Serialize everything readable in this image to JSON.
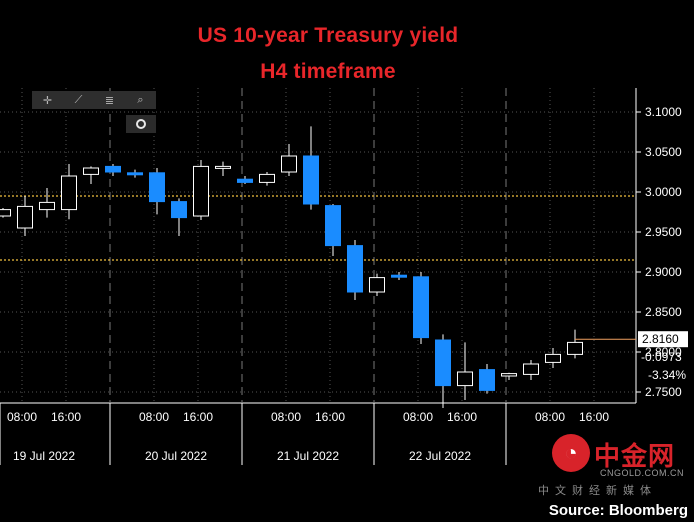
{
  "title": "US 10-year Treasury yield",
  "subtitle": "H4 timeframe",
  "source": "Source: Bloomberg",
  "watermark": {
    "name": "中金网",
    "url": "CNGOLD.COM.CN",
    "sub": "中文财经新媒体",
    "icon": "gold-logo-icon"
  },
  "toolbar": {
    "icons": [
      "crosshair-icon",
      "draw-line-icon",
      "indicator-icon",
      "zoom-icon"
    ],
    "glyphs": [
      "✛",
      "⟋",
      "≣",
      "⌕"
    ],
    "selected_icon": "circle-target-icon"
  },
  "colors": {
    "up": "#000000",
    "up_border": "#ffffff",
    "down": "#1a8cff",
    "title": "#e8262a",
    "ref_line": "#f0c040",
    "grid": "#555555",
    "axis_text": "#ffffff"
  },
  "chart_data": {
    "type": "candlestick",
    "title": "US 10-year Treasury yield",
    "subtitle": "H4 timeframe",
    "yaxis": {
      "min": 2.7,
      "max": 3.12,
      "ticks": [
        "2.7500",
        "2.8000",
        "2.8500",
        "2.9000",
        "2.9500",
        "3.0000",
        "3.0500",
        "3.1000"
      ],
      "side": "right"
    },
    "xaxis": {
      "time_ticks": [
        "08:00",
        "16:00",
        "08:00",
        "16:00",
        "08:00",
        "16:00",
        "08:00",
        "16:00",
        "08:00",
        "16:00"
      ],
      "date_labels": [
        "19 Jul 2022",
        "20 Jul 2022",
        "21 Jul 2022",
        "22 Jul 2022"
      ]
    },
    "reference_lines": [
      2.995,
      2.915
    ],
    "last_value": {
      "price": "2.8160",
      "change": "-0.0973",
      "pct": "-3.34%",
      "y": 2.816
    },
    "candles": [
      {
        "o": 2.97,
        "h": 2.98,
        "l": 2.968,
        "c": 2.978
      },
      {
        "o": 2.955,
        "h": 2.995,
        "l": 2.945,
        "c": 2.982
      },
      {
        "o": 2.978,
        "h": 3.005,
        "l": 2.968,
        "c": 2.987
      },
      {
        "o": 2.978,
        "h": 3.035,
        "l": 2.966,
        "c": 3.02
      },
      {
        "o": 3.022,
        "h": 3.032,
        "l": 3.01,
        "c": 3.03
      },
      {
        "o": 3.032,
        "h": 3.035,
        "l": 3.02,
        "c": 3.025
      },
      {
        "o": 3.024,
        "h": 3.028,
        "l": 3.018,
        "c": 3.022
      },
      {
        "o": 3.024,
        "h": 3.03,
        "l": 2.972,
        "c": 2.988
      },
      {
        "o": 2.988,
        "h": 2.992,
        "l": 2.945,
        "c": 2.968
      },
      {
        "o": 2.97,
        "h": 3.04,
        "l": 2.965,
        "c": 3.032
      },
      {
        "o": 3.03,
        "h": 3.038,
        "l": 3.02,
        "c": 3.032
      },
      {
        "o": 3.016,
        "h": 3.02,
        "l": 3.01,
        "c": 3.012
      },
      {
        "o": 3.012,
        "h": 3.025,
        "l": 3.008,
        "c": 3.022
      },
      {
        "o": 3.025,
        "h": 3.06,
        "l": 3.02,
        "c": 3.045
      },
      {
        "o": 3.045,
        "h": 3.082,
        "l": 2.978,
        "c": 2.985
      },
      {
        "o": 2.983,
        "h": 2.985,
        "l": 2.92,
        "c": 2.933
      },
      {
        "o": 2.933,
        "h": 2.94,
        "l": 2.865,
        "c": 2.875
      },
      {
        "o": 2.875,
        "h": 2.898,
        "l": 2.87,
        "c": 2.893
      },
      {
        "o": 2.896,
        "h": 2.9,
        "l": 2.89,
        "c": 2.894
      },
      {
        "o": 2.894,
        "h": 2.9,
        "l": 2.81,
        "c": 2.818
      },
      {
        "o": 2.815,
        "h": 2.822,
        "l": 2.73,
        "c": 2.758
      },
      {
        "o": 2.758,
        "h": 2.812,
        "l": 2.74,
        "c": 2.775
      },
      {
        "o": 2.778,
        "h": 2.785,
        "l": 2.748,
        "c": 2.752
      },
      {
        "o": 2.77,
        "h": 2.774,
        "l": 2.765,
        "c": 2.773
      },
      {
        "o": 2.772,
        "h": 2.79,
        "l": 2.765,
        "c": 2.785
      },
      {
        "o": 2.787,
        "h": 2.805,
        "l": 2.78,
        "c": 2.797
      },
      {
        "o": 2.797,
        "h": 2.828,
        "l": 2.792,
        "c": 2.812
      }
    ]
  }
}
